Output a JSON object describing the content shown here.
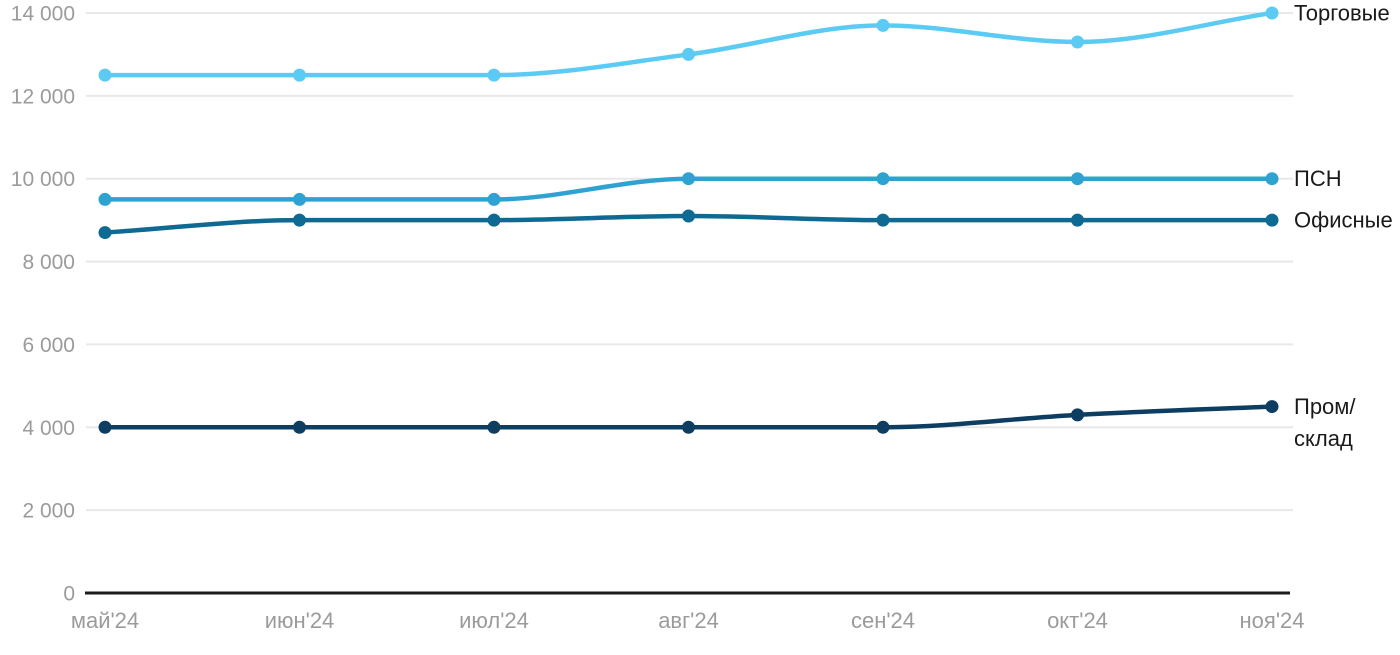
{
  "chart_data": {
    "type": "line",
    "title": "",
    "xlabel": "",
    "ylabel": "",
    "x_labels": [
      "май'24",
      "июн'24",
      "июл'24",
      "авг'24",
      "сен'24",
      "окт'24",
      "ноя'24"
    ],
    "y_ticks": [
      {
        "value": 0,
        "label": "0"
      },
      {
        "value": 2000,
        "label": "2 000"
      },
      {
        "value": 4000,
        "label": "4 000"
      },
      {
        "value": 6000,
        "label": "6 000"
      },
      {
        "value": 8000,
        "label": "8 000"
      },
      {
        "value": 10000,
        "label": "10 000"
      },
      {
        "value": 12000,
        "label": "12 000"
      },
      {
        "value": 14000,
        "label": "14 000"
      }
    ],
    "ylim": [
      0,
      14000
    ],
    "grid": true,
    "legend_position": "right-end-labels",
    "series": [
      {
        "id": "torgovye",
        "name": "Торговые",
        "label_lines": [
          "Торговые"
        ],
        "color": "#5CCBF4",
        "values": [
          12500,
          12500,
          12500,
          13000,
          13700,
          13300,
          14000
        ]
      },
      {
        "id": "psn",
        "name": "ПСН",
        "label_lines": [
          "ПСН"
        ],
        "color": "#2EA3D2",
        "values": [
          9500,
          9500,
          9500,
          10000,
          10000,
          10000,
          10000
        ]
      },
      {
        "id": "ofisnye",
        "name": "Офисные",
        "label_lines": [
          "Офисные"
        ],
        "color": "#0F6A93",
        "values": [
          8700,
          9000,
          9000,
          9100,
          9000,
          9000,
          9000
        ]
      },
      {
        "id": "prom-sklad",
        "name": "Пром/склад",
        "label_lines": [
          "Пром/",
          "склад"
        ],
        "color": "#0E3D62",
        "values": [
          4000,
          4000,
          4000,
          4000,
          4000,
          4300,
          4500
        ]
      }
    ],
    "colors": {
      "grid": "#E8E8E8",
      "axis": "#1B1B1B",
      "tick_label": "#9B9B9B",
      "series_label": "#1A1A1A",
      "background": "#FFFFFF"
    }
  }
}
